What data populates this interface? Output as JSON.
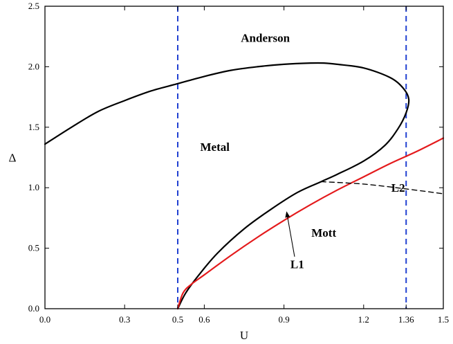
{
  "chart_data": {
    "type": "line",
    "xlabel": "U",
    "ylabel": "Δ",
    "xlim": [
      0.0,
      1.5
    ],
    "ylim": [
      0.0,
      2.5
    ],
    "grid": false,
    "legend": "none",
    "x_ticks": [
      {
        "value": 0.0,
        "label": "0.0"
      },
      {
        "value": 0.3,
        "label": "0.3"
      },
      {
        "value": 0.5,
        "label": "0.5"
      },
      {
        "value": 0.6,
        "label": "0.6"
      },
      {
        "value": 0.9,
        "label": "0.9"
      },
      {
        "value": 1.2,
        "label": "1.2"
      },
      {
        "value": 1.36,
        "label": "1.36"
      },
      {
        "value": 1.5,
        "label": "1.5"
      }
    ],
    "y_ticks": [
      {
        "value": 0.0,
        "label": "0.0"
      },
      {
        "value": 0.5,
        "label": "0.5"
      },
      {
        "value": 1.0,
        "label": "1.0"
      },
      {
        "value": 1.5,
        "label": "1.5"
      },
      {
        "value": 2.0,
        "label": "2.0"
      },
      {
        "value": 2.5,
        "label": "2.5"
      }
    ],
    "series": [
      {
        "color": "#000000",
        "style": "solid",
        "points": [
          [
            0.0,
            1.36
          ],
          [
            0.1,
            1.5
          ],
          [
            0.2,
            1.63
          ],
          [
            0.3,
            1.72
          ],
          [
            0.4,
            1.8
          ],
          [
            0.5,
            1.86
          ],
          [
            0.6,
            1.92
          ],
          [
            0.7,
            1.97
          ],
          [
            0.8,
            2.0
          ],
          [
            0.9,
            2.02
          ],
          [
            1.0,
            2.03
          ],
          [
            1.05,
            2.03
          ],
          [
            1.1,
            2.02
          ],
          [
            1.2,
            1.99
          ],
          [
            1.3,
            1.91
          ],
          [
            1.35,
            1.82
          ],
          [
            1.37,
            1.73
          ],
          [
            1.36,
            1.62
          ],
          [
            1.33,
            1.49
          ],
          [
            1.28,
            1.35
          ],
          [
            1.2,
            1.22
          ],
          [
            1.1,
            1.11
          ],
          [
            1.04,
            1.05
          ],
          [
            0.95,
            0.96
          ],
          [
            0.85,
            0.82
          ],
          [
            0.75,
            0.66
          ],
          [
            0.65,
            0.46
          ],
          [
            0.58,
            0.28
          ],
          [
            0.53,
            0.13
          ],
          [
            0.5,
            0.0
          ]
        ]
      },
      {
        "color": "#e41a1c",
        "style": "solid",
        "points": [
          [
            0.5,
            0.0
          ],
          [
            0.52,
            0.13
          ],
          [
            0.55,
            0.2
          ],
          [
            0.6,
            0.28
          ],
          [
            0.7,
            0.44
          ],
          [
            0.8,
            0.59
          ],
          [
            0.9,
            0.73
          ],
          [
            1.0,
            0.86
          ],
          [
            1.1,
            0.98
          ],
          [
            1.2,
            1.09
          ],
          [
            1.3,
            1.2
          ],
          [
            1.4,
            1.3
          ],
          [
            1.5,
            1.41
          ]
        ]
      },
      {
        "color": "#000000",
        "style": "dashed",
        "points": [
          [
            1.04,
            1.05
          ],
          [
            1.2,
            1.03
          ],
          [
            1.36,
            0.99
          ],
          [
            1.5,
            0.95
          ]
        ]
      }
    ],
    "vlines": [
      {
        "x": 0.5,
        "color": "#1f3fd1",
        "style": "dashed"
      },
      {
        "x": 1.36,
        "color": "#1f3fd1",
        "style": "dashed"
      }
    ],
    "annotations": [
      {
        "text": "Anderson",
        "x": 0.83,
        "y": 2.24
      },
      {
        "text": "Metal",
        "x": 0.64,
        "y": 1.34
      },
      {
        "text": "L2",
        "x": 1.33,
        "y": 1.0
      },
      {
        "text": "Mott",
        "x": 1.05,
        "y": 0.63
      },
      {
        "text": "L1",
        "x": 0.95,
        "y": 0.37
      }
    ],
    "arrow": {
      "from": [
        0.94,
        0.43
      ],
      "to": [
        0.91,
        0.8
      ]
    }
  }
}
